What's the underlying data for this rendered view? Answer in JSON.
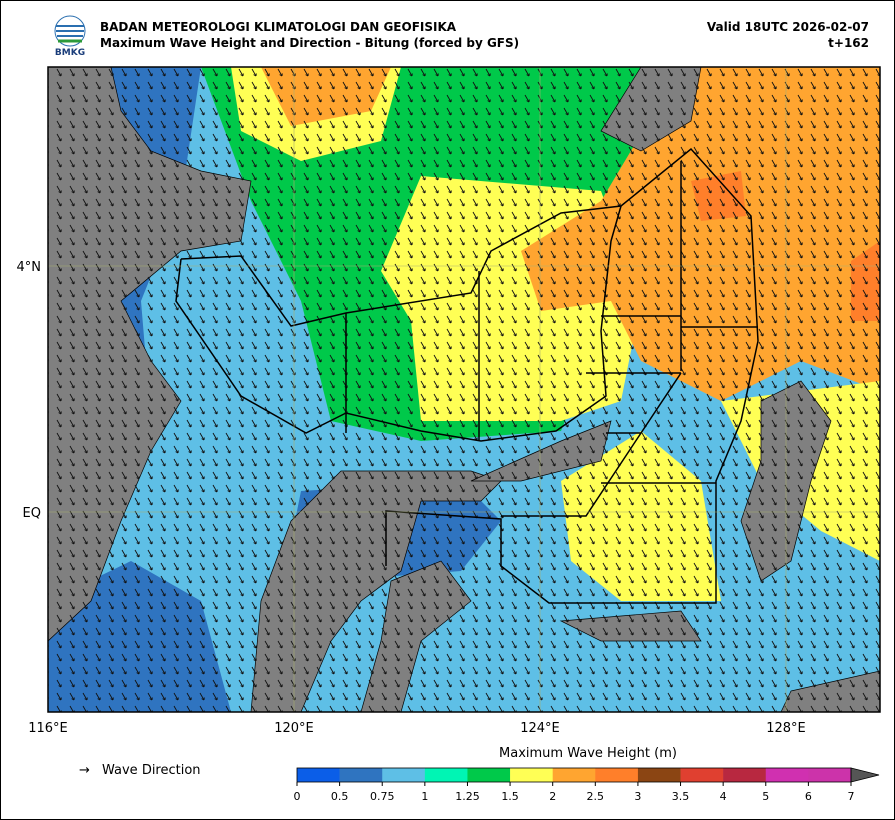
{
  "header": {
    "agency": "BADAN METEOROLOGI KLIMATOLOGI DAN GEOFISIKA",
    "title": "Maximum Wave Height and Direction - Bitung (forced by GFS)",
    "valid": "Valid 18UTC 2026-02-07",
    "lead": "t+162",
    "logo_text": "BMKG"
  },
  "map": {
    "lon_labels": [
      "116°E",
      "120°E",
      "124°E",
      "128°E"
    ],
    "lat_labels": [
      "4°N",
      "EQ"
    ]
  },
  "legend": {
    "arrow": "→",
    "label": "Wave Direction"
  },
  "colorbar": {
    "title": "Maximum Wave Height (m)",
    "ticks": [
      0,
      0.5,
      0.75,
      1,
      1.25,
      1.5,
      2,
      2.5,
      3,
      3.5,
      4,
      5,
      6,
      7
    ],
    "colors": [
      "#0b5ee8",
      "#2f74c0",
      "#5ebfe6",
      "#00f5b4",
      "#00c94a",
      "#ffff55",
      "#ffa530",
      "#ff7f2a",
      "#8b4513",
      "#e04030",
      "#b82840",
      "#d030b0",
      "#cc33aa"
    ],
    "extend_color": "#555555"
  }
}
